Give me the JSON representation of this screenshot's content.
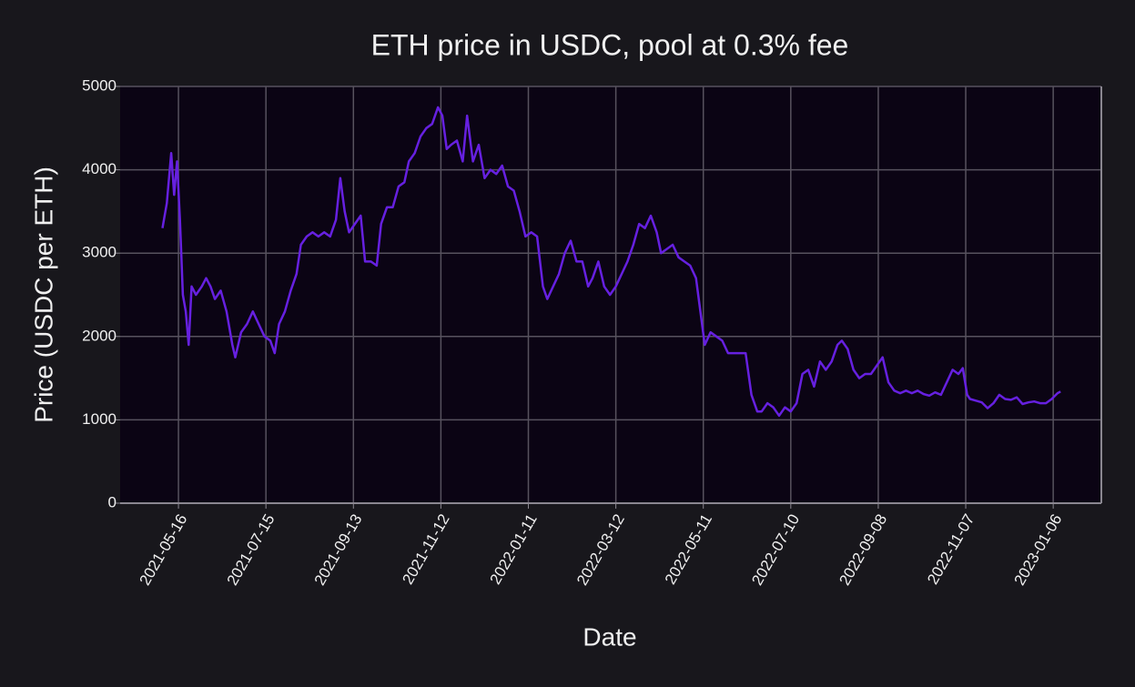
{
  "chart_data": {
    "type": "line",
    "title": "ETH price in USDC, pool at 0.3% fee",
    "xlabel": "Date",
    "ylabel": "Price (USDC per ETH)",
    "color": "#6620e0",
    "grid": true,
    "xlim": [
      "2021-04-06",
      "2023-02-08"
    ],
    "xticks": [
      "2021-05-16",
      "2021-07-15",
      "2021-09-13",
      "2021-11-12",
      "2022-01-11",
      "2022-03-12",
      "2022-05-11",
      "2022-07-10",
      "2022-09-08",
      "2022-11-07",
      "2023-01-06"
    ],
    "ylim": [
      0,
      5000
    ],
    "yticks": [
      0,
      1000,
      2000,
      3000,
      4000,
      5000
    ],
    "x": [
      "2021-05-05",
      "2021-05-08",
      "2021-05-11",
      "2021-05-13",
      "2021-05-15",
      "2021-05-17",
      "2021-05-19",
      "2021-05-21",
      "2021-05-23",
      "2021-05-25",
      "2021-05-28",
      "2021-06-01",
      "2021-06-04",
      "2021-06-07",
      "2021-06-10",
      "2021-06-14",
      "2021-06-18",
      "2021-06-22",
      "2021-06-24",
      "2021-06-28",
      "2021-07-02",
      "2021-07-06",
      "2021-07-10",
      "2021-07-14",
      "2021-07-18",
      "2021-07-21",
      "2021-07-24",
      "2021-07-28",
      "2021-08-01",
      "2021-08-05",
      "2021-08-08",
      "2021-08-12",
      "2021-08-16",
      "2021-08-20",
      "2021-08-24",
      "2021-08-28",
      "2021-09-01",
      "2021-09-04",
      "2021-09-07",
      "2021-09-10",
      "2021-09-14",
      "2021-09-18",
      "2021-09-21",
      "2021-09-25",
      "2021-09-29",
      "2021-10-02",
      "2021-10-06",
      "2021-10-10",
      "2021-10-14",
      "2021-10-18",
      "2021-10-21",
      "2021-10-25",
      "2021-10-29",
      "2021-11-02",
      "2021-11-06",
      "2021-11-10",
      "2021-11-13",
      "2021-11-16",
      "2021-11-19",
      "2021-11-23",
      "2021-11-27",
      "2021-11-30",
      "2021-12-04",
      "2021-12-08",
      "2021-12-12",
      "2021-12-16",
      "2021-12-20",
      "2021-12-24",
      "2021-12-28",
      "2022-01-01",
      "2022-01-05",
      "2022-01-09",
      "2022-01-13",
      "2022-01-17",
      "2022-01-21",
      "2022-01-24",
      "2022-01-28",
      "2022-02-01",
      "2022-02-05",
      "2022-02-09",
      "2022-02-13",
      "2022-02-17",
      "2022-02-21",
      "2022-02-24",
      "2022-02-28",
      "2022-03-04",
      "2022-03-08",
      "2022-03-12",
      "2022-03-16",
      "2022-03-20",
      "2022-03-24",
      "2022-03-28",
      "2022-04-01",
      "2022-04-05",
      "2022-04-09",
      "2022-04-12",
      "2022-04-16",
      "2022-04-20",
      "2022-04-24",
      "2022-04-28",
      "2022-05-02",
      "2022-05-06",
      "2022-05-09",
      "2022-05-12",
      "2022-05-16",
      "2022-05-20",
      "2022-05-24",
      "2022-05-28",
      "2022-06-01",
      "2022-06-05",
      "2022-06-09",
      "2022-06-13",
      "2022-06-17",
      "2022-06-20",
      "2022-06-24",
      "2022-06-28",
      "2022-07-02",
      "2022-07-06",
      "2022-07-10",
      "2022-07-14",
      "2022-07-18",
      "2022-07-22",
      "2022-07-26",
      "2022-07-30",
      "2022-08-03",
      "2022-08-07",
      "2022-08-11",
      "2022-08-14",
      "2022-08-18",
      "2022-08-22",
      "2022-08-26",
      "2022-08-30",
      "2022-09-03",
      "2022-09-07",
      "2022-09-11",
      "2022-09-15",
      "2022-09-19",
      "2022-09-23",
      "2022-09-27",
      "2022-10-01",
      "2022-10-05",
      "2022-10-09",
      "2022-10-13",
      "2022-10-17",
      "2022-10-21",
      "2022-10-25",
      "2022-10-29",
      "2022-11-02",
      "2022-11-05",
      "2022-11-08",
      "2022-11-10",
      "2022-11-14",
      "2022-11-18",
      "2022-11-22",
      "2022-11-26",
      "2022-11-30",
      "2022-12-04",
      "2022-12-08",
      "2022-12-12",
      "2022-12-16",
      "2022-12-20",
      "2022-12-24",
      "2022-12-28",
      "2023-01-01",
      "2023-01-05",
      "2023-01-09",
      "2023-01-11"
    ],
    "values": [
      3300,
      3600,
      4200,
      3700,
      4100,
      3400,
      2500,
      2300,
      1900,
      2600,
      2500,
      2600,
      2700,
      2600,
      2450,
      2550,
      2300,
      1900,
      1750,
      2050,
      2150,
      2300,
      2150,
      2000,
      1950,
      1800,
      2150,
      2300,
      2550,
      2750,
      3100,
      3200,
      3250,
      3200,
      3250,
      3200,
      3400,
      3900,
      3500,
      3250,
      3350,
      3450,
      2900,
      2900,
      2850,
      3350,
      3550,
      3550,
      3800,
      3850,
      4100,
      4200,
      4400,
      4500,
      4550,
      4750,
      4650,
      4250,
      4300,
      4350,
      4100,
      4650,
      4100,
      4300,
      3900,
      4000,
      3950,
      4050,
      3800,
      3750,
      3500,
      3200,
      3250,
      3200,
      2600,
      2450,
      2600,
      2750,
      3000,
      3150,
      2900,
      2900,
      2600,
      2700,
      2900,
      2600,
      2500,
      2600,
      2750,
      2900,
      3100,
      3350,
      3300,
      3450,
      3250,
      3000,
      3050,
      3100,
      2950,
      2900,
      2850,
      2700,
      2300,
      1900,
      2050,
      2000,
      1950,
      1800,
      1800,
      1800,
      1800,
      1300,
      1100,
      1100,
      1200,
      1150,
      1050,
      1150,
      1100,
      1200,
      1550,
      1600,
      1400,
      1700,
      1600,
      1700,
      1900,
      1950,
      1850,
      1600,
      1500,
      1550,
      1550,
      1650,
      1750,
      1450,
      1350,
      1320,
      1350,
      1320,
      1350,
      1310,
      1290,
      1330,
      1300,
      1450,
      1600,
      1550,
      1620,
      1300,
      1250,
      1230,
      1210,
      1140,
      1200,
      1300,
      1250,
      1240,
      1270,
      1190,
      1210,
      1220,
      1200,
      1200,
      1250,
      1320,
      1340
    ]
  }
}
